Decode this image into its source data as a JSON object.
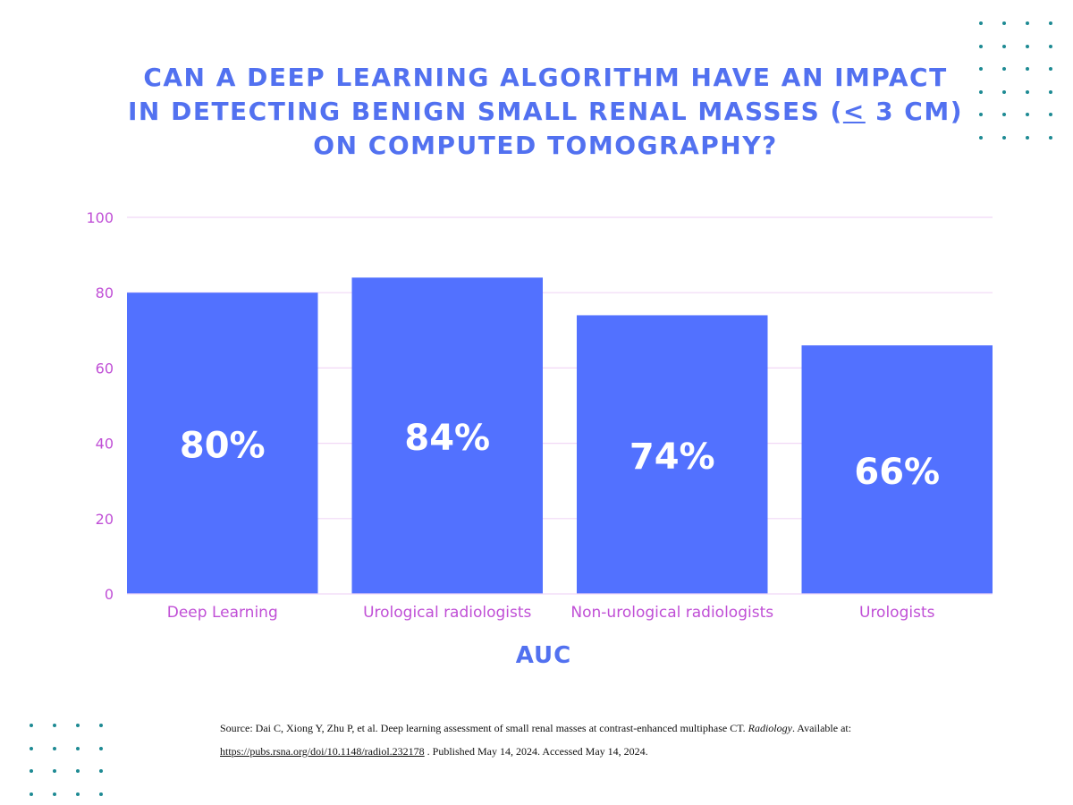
{
  "title": {
    "line1": "CAN A DEEP LEARNING ALGORITHM HAVE AN IMPACT",
    "line2_before": "IN DETECTING BENIGN SMALL RENAL MASSES (",
    "line2_le": "<",
    "line2_after": " 3 CM)",
    "line3": "ON COMPUTED TOMOGRAPHY?"
  },
  "chart_data": {
    "type": "bar",
    "categories": [
      "Deep Learning",
      "Urological radiologists",
      "Non-urological radiologists",
      "Urologists"
    ],
    "values": [
      80,
      84,
      74,
      66
    ],
    "data_labels": [
      "80%",
      "84%",
      "74%",
      "66%"
    ],
    "xlabel": "AUC",
    "ylabel": "",
    "ylim": [
      0,
      100
    ],
    "yticks": [
      0,
      20,
      40,
      60,
      80,
      100
    ],
    "grid": true,
    "bar_color": "#5271ff",
    "grid_color": "#f1d8f6",
    "tick_label_color": "#c04fd6",
    "data_label_color": "#ffffff"
  },
  "source": {
    "prefix": "Source:  Dai C, Xiong Y, Zhu P, et al. Deep learning assessment of small renal masses at contrast-enhanced multiphase CT. ",
    "journal": "Radiology",
    "middle": ". Available at: ",
    "url": "https://pubs.rsna.org/doi/10.1148/radiol.232178",
    "suffix": " . Published May 14, 2024. Accessed May 14, 2024."
  },
  "decor": {
    "dot_color": "#1d8a93"
  }
}
